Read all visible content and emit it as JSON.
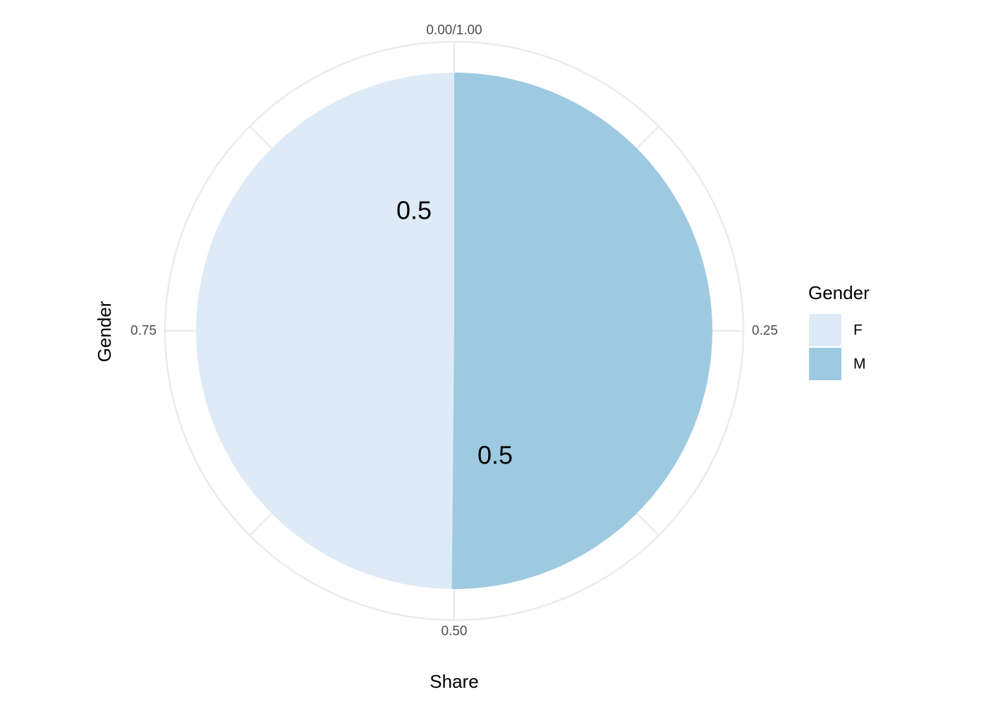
{
  "chart_data": {
    "type": "pie",
    "xlabel": "Share",
    "ylabel": "Gender",
    "categories": [
      "F",
      "M"
    ],
    "values": [
      0.5,
      0.5
    ],
    "data_labels": [
      "0.5",
      "0.5"
    ],
    "angular_ticks": [
      {
        "value": 0.0,
        "label": "0.00/1.00"
      },
      {
        "value": 0.25,
        "label": "0.25"
      },
      {
        "value": 0.5,
        "label": "0.50"
      },
      {
        "value": 0.75,
        "label": "0.75"
      }
    ],
    "grid": true,
    "legend": {
      "title": "Gender",
      "position": "right",
      "entries": [
        {
          "label": "F",
          "color": "#deebf7"
        },
        {
          "label": "M",
          "color": "#9ecae1"
        }
      ]
    },
    "colors": {
      "F": "#deebf7",
      "M": "#9ecae1",
      "grid": "#ebebeb"
    }
  }
}
